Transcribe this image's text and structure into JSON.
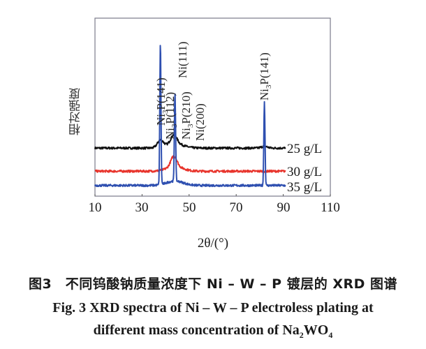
{
  "chart_data": {
    "type": "line",
    "title": "XRD spectra of Ni-W-P electroless plating at different mass concentration of Na2WO4",
    "xlabel": "2θ/(°)",
    "ylabel": "相对强度",
    "xlim": [
      10,
      110
    ],
    "xticks": [
      10,
      30,
      50,
      70,
      90,
      110
    ],
    "grid": false,
    "legend_position": "inline-right",
    "series": [
      {
        "name": "25 g/L",
        "color": "#111111",
        "baseline": 0.27,
        "peaks": [
          {
            "x": 37.8,
            "h": 0.04
          },
          {
            "x": 43.5,
            "h": 0.05
          },
          {
            "x": 82.0,
            "h": 0.01
          }
        ]
      },
      {
        "name": "30 g/L",
        "color": "#e8342c",
        "baseline": 0.14,
        "peaks": [
          {
            "x": 43.5,
            "h": 0.06
          }
        ]
      },
      {
        "name": "35 g/L",
        "color": "#2e4fb0",
        "baseline": 0.06,
        "peaks": [
          {
            "x": 37.8,
            "h": 0.8
          },
          {
            "x": 44.0,
            "h": 0.5
          },
          {
            "x": 82.0,
            "h": 0.47
          }
        ]
      }
    ],
    "annotations": [
      {
        "text": "Ni3P(141)",
        "x": 37.8
      },
      {
        "text": "Ni3P(112)",
        "x": 40.5
      },
      {
        "text": "Ni(111)",
        "x": 44.5
      },
      {
        "text": "Ni3P(210)",
        "x": 43.8
      },
      {
        "text": "Ni(200)",
        "x": 51.8
      },
      {
        "text": "Ni3P(141)",
        "x": 82.0
      }
    ]
  },
  "axis": {
    "xticks": [
      "10",
      "30",
      "50",
      "70",
      "90",
      "110"
    ],
    "xlabel": "2θ/(°)",
    "ylabel": "相对强度"
  },
  "legend": [
    "25 g/L",
    "30 g/L",
    "35 g/L"
  ],
  "peak_labels": {
    "p1_main": "Ni",
    "p1_sub": "3",
    "p1_rest": "P(141)",
    "p2_main": "Ni",
    "p2_sub": "3",
    "p2_rest": "P(112)",
    "p3": "Ni(111)",
    "p4_main": "Ni",
    "p4_sub": "3",
    "p4_rest": "P(210)",
    "p5": "Ni(200)",
    "p6_main": "Ni",
    "p6_sub": "3",
    "p6_rest": "P(141)"
  },
  "caption": {
    "cn": "图3　不同钨酸钠质量浓度下 Ni – W – P 镀层的 XRD 图谱",
    "en_line1": "Fig.  3    XRD spectra of Ni – W – P electroless plating at",
    "en_line2_a": "different mass concentration of Na",
    "en_line2_sub1": "2",
    "en_line2_b": "WO",
    "en_line2_sub2": "4"
  }
}
